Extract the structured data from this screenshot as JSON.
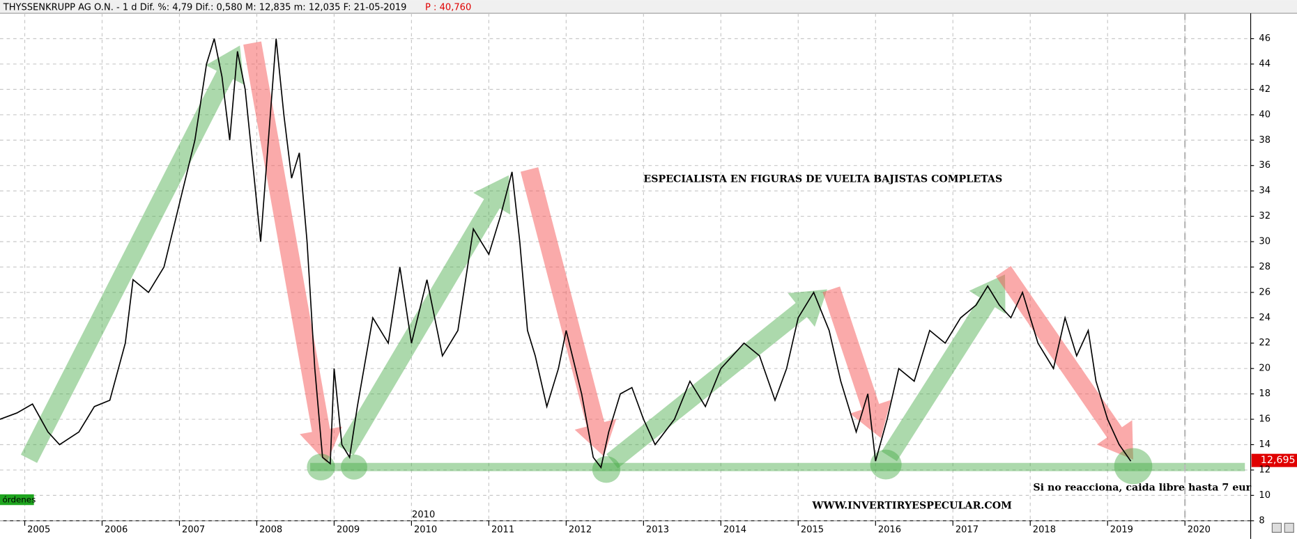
{
  "chart_data": {
    "type": "line",
    "header": "THYSSENKRUPP AG O.N.  -  1 d Dif. %: 4,79 Dif.: 0,580 M: 12,835 m: 12,035 F: 21-05-2019",
    "header_price": "P : 40,760",
    "annotations": [
      "ESPECIALISTA EN FIGURAS DE VUELTA BAJISTAS COMPLETAS",
      "Si no reacciona, caida libre   hasta 7 eur",
      "WWW.INVERTIRYESPECULAR.COM"
    ],
    "orders_button": "órdenes",
    "last_price_label": "12,695",
    "x_marker_label": "2010",
    "color": "#000000",
    "grid": true,
    "x": [
      2004.68,
      2004.9,
      2005.1,
      2005.3,
      2005.45,
      2005.7,
      2005.9,
      2006.1,
      2006.3,
      2006.4,
      2006.6,
      2006.8,
      2007.0,
      2007.2,
      2007.35,
      2007.45,
      2007.55,
      2007.65,
      2007.75,
      2007.85,
      2007.95,
      2008.05,
      2008.15,
      2008.25,
      2008.35,
      2008.45,
      2008.55,
      2008.65,
      2008.75,
      2008.85,
      2008.95,
      2009.0,
      2009.1,
      2009.2,
      2009.3,
      2009.5,
      2009.7,
      2009.85,
      2010.0,
      2010.2,
      2010.4,
      2010.6,
      2010.8,
      2011.0,
      2011.15,
      2011.3,
      2011.4,
      2011.5,
      2011.6,
      2011.75,
      2011.9,
      2012.0,
      2012.2,
      2012.35,
      2012.45,
      2012.55,
      2012.7,
      2012.85,
      2013.0,
      2013.15,
      2013.4,
      2013.6,
      2013.8,
      2014.0,
      2014.3,
      2014.5,
      2014.7,
      2014.85,
      2015.0,
      2015.2,
      2015.4,
      2015.55,
      2015.75,
      2015.9,
      2016.0,
      2016.15,
      2016.3,
      2016.5,
      2016.7,
      2016.9,
      2017.1,
      2017.3,
      2017.45,
      2017.6,
      2017.75,
      2017.9,
      2018.1,
      2018.3,
      2018.45,
      2018.6,
      2018.75,
      2018.85,
      2019.0,
      2019.15,
      2019.3
    ],
    "values": [
      16,
      16.5,
      17.2,
      15,
      14,
      15,
      17,
      17.5,
      22,
      27,
      26,
      28,
      33,
      38,
      44,
      46,
      43,
      38,
      45,
      42,
      36,
      30,
      38,
      46,
      40,
      35,
      37,
      30,
      20,
      13,
      12.5,
      20,
      14,
      13,
      17,
      24,
      22,
      28,
      22,
      27,
      21,
      23,
      31,
      29,
      32,
      35.5,
      30,
      23,
      21,
      17,
      20,
      23,
      18,
      13,
      12.2,
      15,
      18,
      18.5,
      16,
      14,
      16,
      19,
      17,
      20,
      22,
      21,
      17.5,
      20,
      24,
      26,
      23,
      19,
      15,
      18,
      12.7,
      16,
      20,
      19,
      23,
      22,
      24,
      25,
      26.5,
      25,
      24,
      26,
      22,
      20,
      24,
      21,
      23,
      19,
      16,
      14,
      12.7
    ],
    "xlim": [
      2004.68,
      2020.85
    ],
    "ylim": [
      8,
      48
    ],
    "xticks": [
      2005,
      2006,
      2007,
      2008,
      2009,
      2010,
      2011,
      2012,
      2013,
      2014,
      2015,
      2016,
      2017,
      2018,
      2019,
      2020
    ],
    "yticks": [
      8,
      10,
      12,
      14,
      16,
      18,
      20,
      22,
      24,
      26,
      28,
      30,
      32,
      34,
      36,
      38,
      40,
      42,
      44,
      46
    ]
  }
}
